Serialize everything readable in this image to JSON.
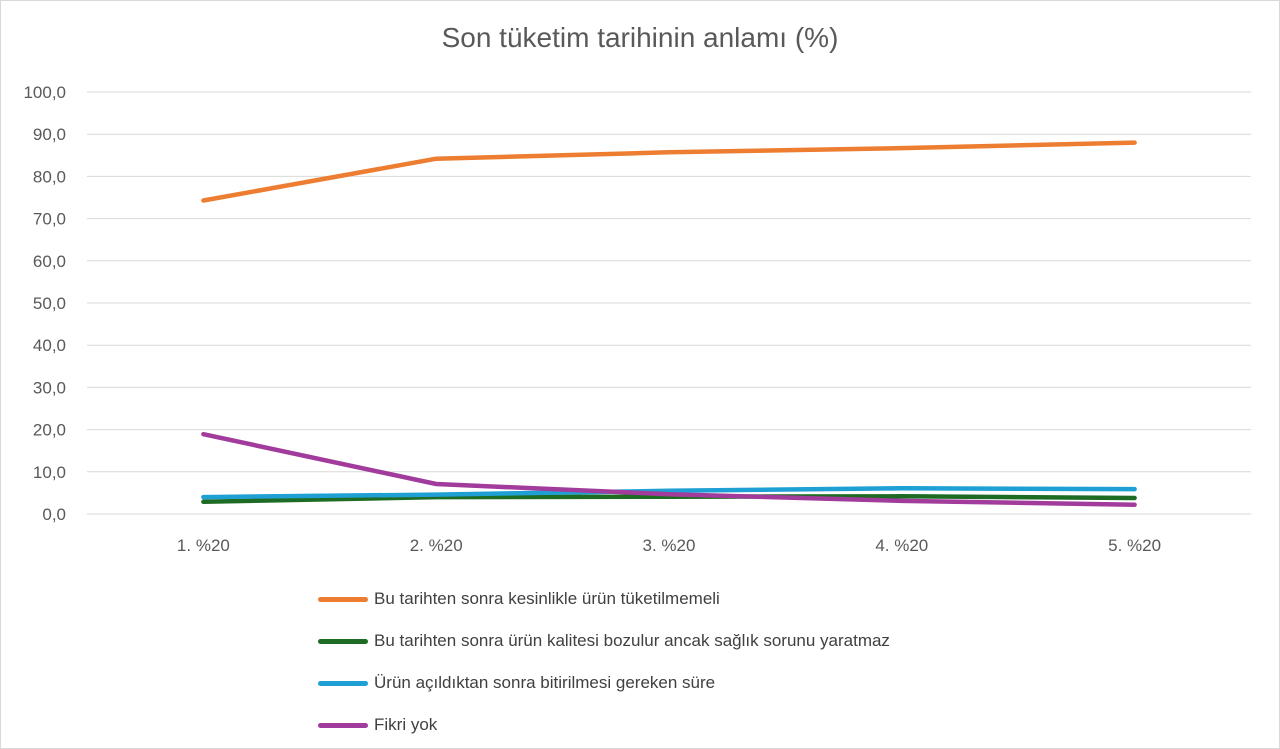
{
  "chart_data": {
    "type": "line",
    "title": "Son tüketim tarihinin anlamı (%)",
    "categories": [
      "1. %20",
      "2. %20",
      "3. %20",
      "4. %20",
      "5. %20"
    ],
    "ylim": [
      0,
      100
    ],
    "yticks": [
      "0,0",
      "10,0",
      "20,0",
      "30,0",
      "40,0",
      "50,0",
      "60,0",
      "70,0",
      "80,0",
      "90,0",
      "100,0"
    ],
    "grid": true,
    "legend_position": "bottom",
    "series": [
      {
        "name": "Bu tarihten sonra kesinlikle ürün tüketilmemeli",
        "color": "#ed7d31",
        "values": [
          74.3,
          84.2,
          85.7,
          86.7,
          88.0
        ]
      },
      {
        "name": "Bu tarihten sonra ürün kalitesi bozulur ancak sağlık sorunu yaratmaz",
        "color": "#1e6b24",
        "values": [
          2.9,
          4.0,
          4.1,
          4.2,
          3.8
        ]
      },
      {
        "name": "Ürün açıldıktan sonra bitirilmesi gereken süre",
        "color": "#1ea0d4",
        "values": [
          4.0,
          4.6,
          5.5,
          6.1,
          5.9
        ]
      },
      {
        "name": "Fikri yok",
        "color": "#a23c9c",
        "values": [
          18.9,
          7.1,
          4.7,
          3.1,
          2.2
        ]
      }
    ]
  }
}
